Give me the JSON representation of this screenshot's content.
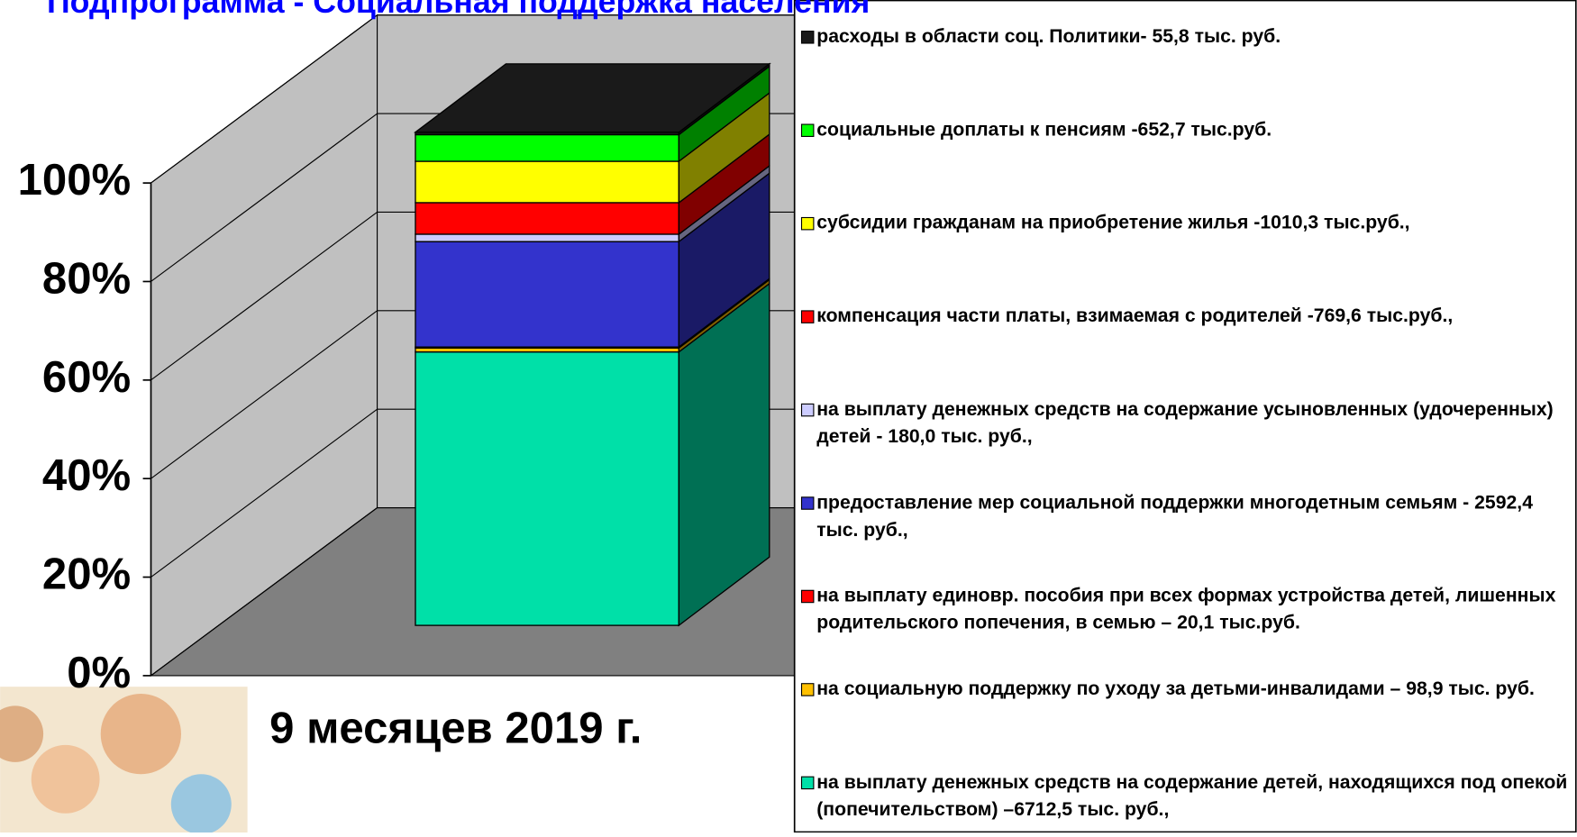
{
  "chart_data": {
    "type": "bar3d_stacked_percent",
    "title": "Подпрограмма - Социальная поддержка населения",
    "categories": [
      "9 месяцев 2019 г."
    ],
    "ylim": [
      0,
      100
    ],
    "yticks": [
      {
        "value": 0,
        "label": "0%"
      },
      {
        "value": 20,
        "label": "20%"
      },
      {
        "value": 40,
        "label": "40%"
      },
      {
        "value": 60,
        "label": "60%"
      },
      {
        "value": 80,
        "label": "80%"
      },
      {
        "value": 100,
        "label": "100%"
      }
    ],
    "grid": true,
    "legend": "right",
    "series": [
      {
        "name": "на выплату денежных средств на содержание детей, находящихся под опекой (попечительством) –6712,5 тыс. руб.,",
        "color": "#00e0a8",
        "values": [
          55.5
        ]
      },
      {
        "name": "на социальную поддержку  по уходу за детьми-инвалидами – 98,9 тыс. руб.",
        "color": "#ffc000",
        "values": [
          0.8
        ]
      },
      {
        "name": "на выплату  единовр. пособия при всех формах устройства детей, лишенных родительского попечения, в семью – 20,1 тыс.руб.",
        "color": "#ff0000",
        "values": [
          0.2
        ]
      },
      {
        "name": "предоставление мер социальной поддержки многодетным семьям - 2592,4 тыс. руб.,",
        "color": "#3333cc",
        "values": [
          21.4
        ]
      },
      {
        "name": "на выплату денежных средств на содержание усыновленных (удочеренных) детей - 180,0 тыс. руб.,",
        "color": "#ccccff",
        "values": [
          1.5
        ]
      },
      {
        "name": "компенсация части платы, взимаемая с родителей -769,6 тыс.руб.,",
        "color": "#ff0000",
        "values": [
          6.4
        ]
      },
      {
        "name": "субсидии гражданам на приобретение жилья -1010,3 тыс.руб.,",
        "color": "#ffff00",
        "values": [
          8.4
        ]
      },
      {
        "name": "социальные доплаты к пенсиям -652,7  тыс.руб.",
        "color": "#00ff00",
        "values": [
          5.4
        ]
      },
      {
        "name": "расходы в области соц. Политики- 55,8 тыс. руб.",
        "color": "#1a1a1a",
        "values": [
          0.5
        ]
      }
    ]
  }
}
